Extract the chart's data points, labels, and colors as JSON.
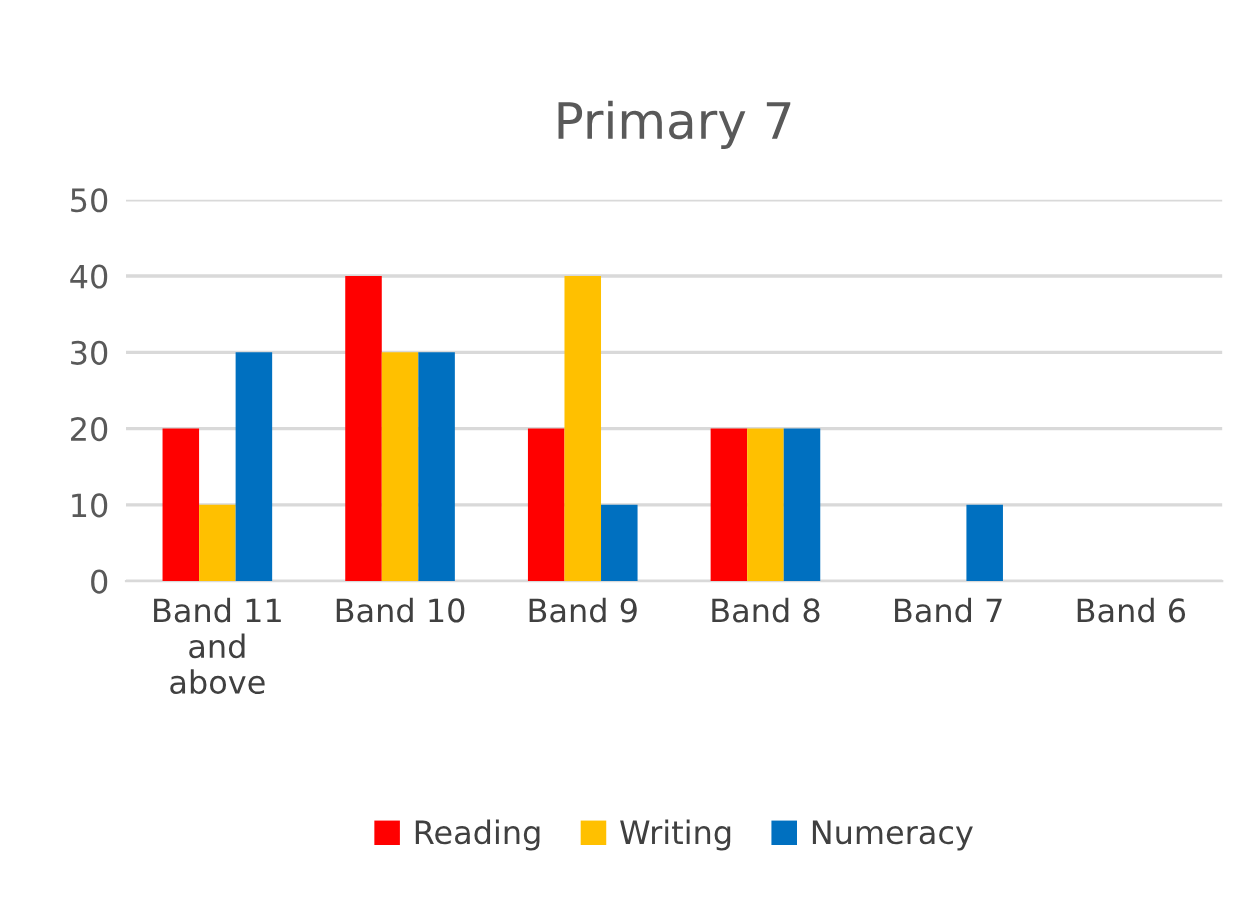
{
  "chart_data": {
    "type": "bar",
    "title": "Primary 7",
    "categories": [
      "Band 11\nand\nabove",
      "Band 10",
      "Band 9",
      "Band 8",
      "Band 7",
      "Band 6"
    ],
    "series": [
      {
        "name": "Reading",
        "color": "#ff0000",
        "values": [
          20,
          40,
          20,
          20,
          0,
          0
        ]
      },
      {
        "name": "Writing",
        "color": "#ffc000",
        "values": [
          10,
          30,
          40,
          20,
          0,
          0
        ]
      },
      {
        "name": "Numeracy",
        "color": "#0070c0",
        "values": [
          30,
          30,
          10,
          20,
          10,
          0
        ]
      }
    ],
    "ylim": [
      0,
      50
    ],
    "yticks": [
      0,
      10,
      20,
      30,
      40,
      50
    ],
    "grid": "y",
    "legend": "bottom"
  }
}
